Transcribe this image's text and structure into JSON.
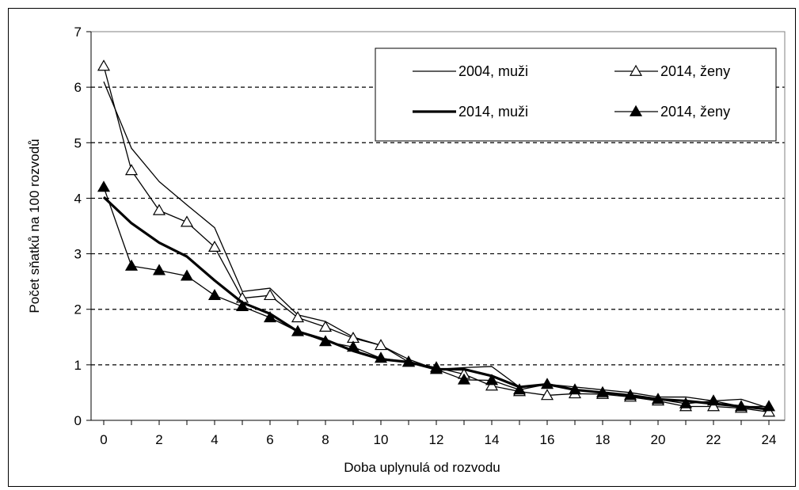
{
  "chart_data": {
    "type": "line",
    "title": "",
    "xlabel": "Doba uplynulá od rozvodu",
    "ylabel": "Počet sňatků na 100 rozvodů",
    "xlim": [
      0,
      24
    ],
    "ylim": [
      0,
      7
    ],
    "x_ticks": [
      "0",
      "2",
      "4",
      "6",
      "8",
      "10",
      "12",
      "14",
      "16",
      "18",
      "20",
      "22",
      "24"
    ],
    "y_ticks": [
      "0",
      "1",
      "2",
      "3",
      "4",
      "5",
      "6",
      "7"
    ],
    "grid": "horizontal-dashed",
    "legend_position": "top-right",
    "x": [
      0,
      1,
      2,
      3,
      4,
      5,
      6,
      7,
      8,
      9,
      10,
      11,
      12,
      13,
      14,
      15,
      16,
      17,
      18,
      19,
      20,
      21,
      22,
      23,
      24
    ],
    "series": [
      {
        "name": "2004, muži",
        "style": "thin-line",
        "color": "#000000",
        "values": [
          6.1,
          4.9,
          4.3,
          3.88,
          3.47,
          2.32,
          2.38,
          1.9,
          1.78,
          1.5,
          1.35,
          1.1,
          0.92,
          0.95,
          0.97,
          0.6,
          0.65,
          0.6,
          0.55,
          0.5,
          0.42,
          0.42,
          0.35,
          0.38,
          0.22
        ]
      },
      {
        "name": "2014, ženy",
        "style": "thin-line-open-triangle",
        "color": "#000000",
        "values": [
          6.38,
          4.5,
          3.78,
          3.57,
          3.12,
          2.2,
          2.25,
          1.85,
          1.68,
          1.48,
          1.35,
          1.05,
          0.95,
          0.83,
          0.62,
          0.52,
          0.45,
          0.48,
          0.47,
          0.42,
          0.35,
          0.25,
          0.25,
          0.22,
          0.15
        ]
      },
      {
        "name": "2014, muži",
        "style": "thick-line",
        "color": "#000000",
        "values": [
          4.02,
          3.55,
          3.2,
          2.95,
          2.52,
          2.12,
          1.92,
          1.6,
          1.45,
          1.25,
          1.1,
          1.05,
          0.92,
          0.92,
          0.8,
          0.6,
          0.65,
          0.55,
          0.5,
          0.45,
          0.38,
          0.35,
          0.3,
          0.25,
          0.2
        ]
      },
      {
        "name": "2014, ženy",
        "style": "thin-line-filled-triangle",
        "color": "#000000",
        "values": [
          4.2,
          2.78,
          2.7,
          2.6,
          2.25,
          2.05,
          1.85,
          1.6,
          1.42,
          1.32,
          1.12,
          1.05,
          0.92,
          0.73,
          0.72,
          0.55,
          0.65,
          0.55,
          0.5,
          0.45,
          0.38,
          0.3,
          0.35,
          0.25,
          0.25
        ]
      }
    ]
  }
}
